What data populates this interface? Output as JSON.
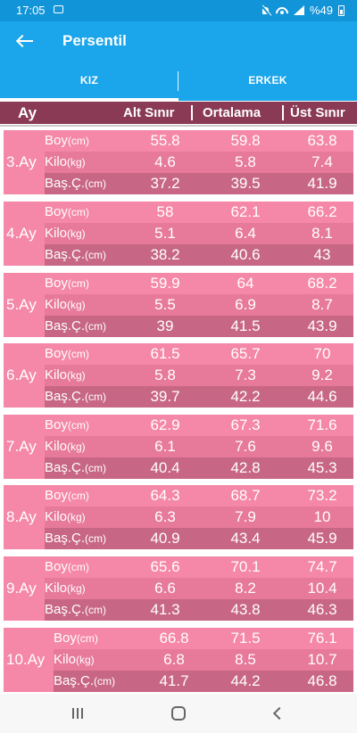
{
  "status_bar": {
    "time": "17:05",
    "battery": "%49"
  },
  "app_bar": {
    "title": "Persentil"
  },
  "tabs": [
    {
      "label": "KIZ"
    },
    {
      "label": "ERKEK"
    }
  ],
  "columns": {
    "age": "Ay",
    "lower": "Alt Sınır",
    "average": "Ortalama",
    "upper": "Üst Sınır"
  },
  "row_labels": {
    "height": {
      "name": "Boy",
      "unit": "(cm)"
    },
    "weight": {
      "name": "Kilo",
      "unit": "(kg)"
    },
    "head": {
      "name": "Baş.Ç.",
      "unit": "(cm)"
    }
  },
  "months": [
    {
      "label": "3.Ay",
      "height": [
        "55.8",
        "59.8",
        "63.8"
      ],
      "weight": [
        "4.6",
        "5.8",
        "7.4"
      ],
      "head": [
        "37.2",
        "39.5",
        "41.9"
      ]
    },
    {
      "label": "4.Ay",
      "height": [
        "58",
        "62.1",
        "66.2"
      ],
      "weight": [
        "5.1",
        "6.4",
        "8.1"
      ],
      "head": [
        "38.2",
        "40.6",
        "43"
      ]
    },
    {
      "label": "5.Ay",
      "height": [
        "59.9",
        "64",
        "68.2"
      ],
      "weight": [
        "5.5",
        "6.9",
        "8.7"
      ],
      "head": [
        "39",
        "41.5",
        "43.9"
      ]
    },
    {
      "label": "6.Ay",
      "height": [
        "61.5",
        "65.7",
        "70"
      ],
      "weight": [
        "5.8",
        "7.3",
        "9.2"
      ],
      "head": [
        "39.7",
        "42.2",
        "44.6"
      ]
    },
    {
      "label": "7.Ay",
      "height": [
        "62.9",
        "67.3",
        "71.6"
      ],
      "weight": [
        "6.1",
        "7.6",
        "9.6"
      ],
      "head": [
        "40.4",
        "42.8",
        "45.3"
      ]
    },
    {
      "label": "8.Ay",
      "height": [
        "64.3",
        "68.7",
        "73.2"
      ],
      "weight": [
        "6.3",
        "7.9",
        "10"
      ],
      "head": [
        "40.9",
        "43.4",
        "45.9"
      ]
    },
    {
      "label": "9.Ay",
      "height": [
        "65.6",
        "70.1",
        "74.7"
      ],
      "weight": [
        "6.6",
        "8.2",
        "10.4"
      ],
      "head": [
        "41.3",
        "43.8",
        "46.3"
      ]
    },
    {
      "label": "10.Ay",
      "height": [
        "66.8",
        "71.5",
        "76.1"
      ],
      "weight": [
        "6.8",
        "8.5",
        "10.7"
      ],
      "head": [
        "41.7",
        "44.2",
        "46.8"
      ]
    }
  ],
  "colors": {
    "primary": "#1ba5ea",
    "status_bar": "#1194d8",
    "header": "#8a3a55",
    "row_light": "#f587a8",
    "row_mid": "#e7799b",
    "row_dark": "#c86785"
  },
  "icons": {
    "back": "arrow-left-icon",
    "recent": "recent-apps-icon",
    "home": "home-icon",
    "nav_back": "chevron-left-icon"
  }
}
